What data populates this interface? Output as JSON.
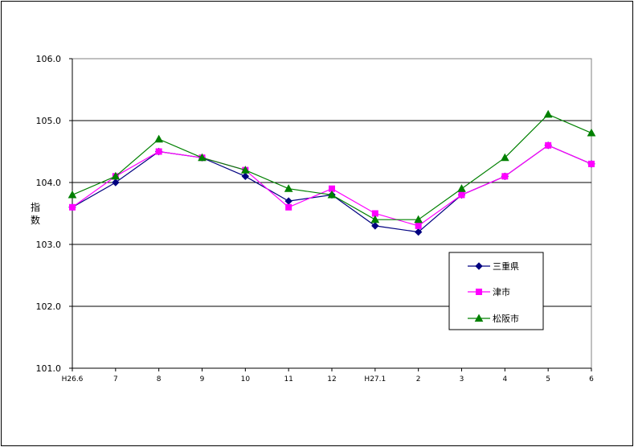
{
  "chart_data": {
    "type": "line",
    "ylabel": "指数",
    "ylim": [
      101.0,
      106.0
    ],
    "yticks": [
      "101.0",
      "102.0",
      "103.0",
      "104.0",
      "105.0",
      "106.0"
    ],
    "categories": [
      "H26.6",
      "7",
      "8",
      "9",
      "10",
      "11",
      "12",
      "H27.1",
      "2",
      "3",
      "4",
      "5",
      "6"
    ],
    "grid": true,
    "legend_position": "bottom-right",
    "series": [
      {
        "name": "三重県",
        "color": "#000080",
        "marker": "diamond",
        "values": [
          103.6,
          104.0,
          104.5,
          104.4,
          104.1,
          103.7,
          103.8,
          103.3,
          103.2,
          103.8,
          104.1,
          104.6,
          104.3
        ]
      },
      {
        "name": "津市",
        "color": "#ff00ff",
        "marker": "square",
        "values": [
          103.6,
          104.1,
          104.5,
          104.4,
          104.2,
          103.6,
          103.9,
          103.5,
          103.3,
          103.8,
          104.1,
          104.6,
          104.3
        ]
      },
      {
        "name": "松阪市",
        "color": "#008000",
        "marker": "triangle",
        "values": [
          103.8,
          104.1,
          104.7,
          104.4,
          104.2,
          103.9,
          103.8,
          103.4,
          103.4,
          103.9,
          104.4,
          105.1,
          104.8
        ]
      }
    ]
  }
}
